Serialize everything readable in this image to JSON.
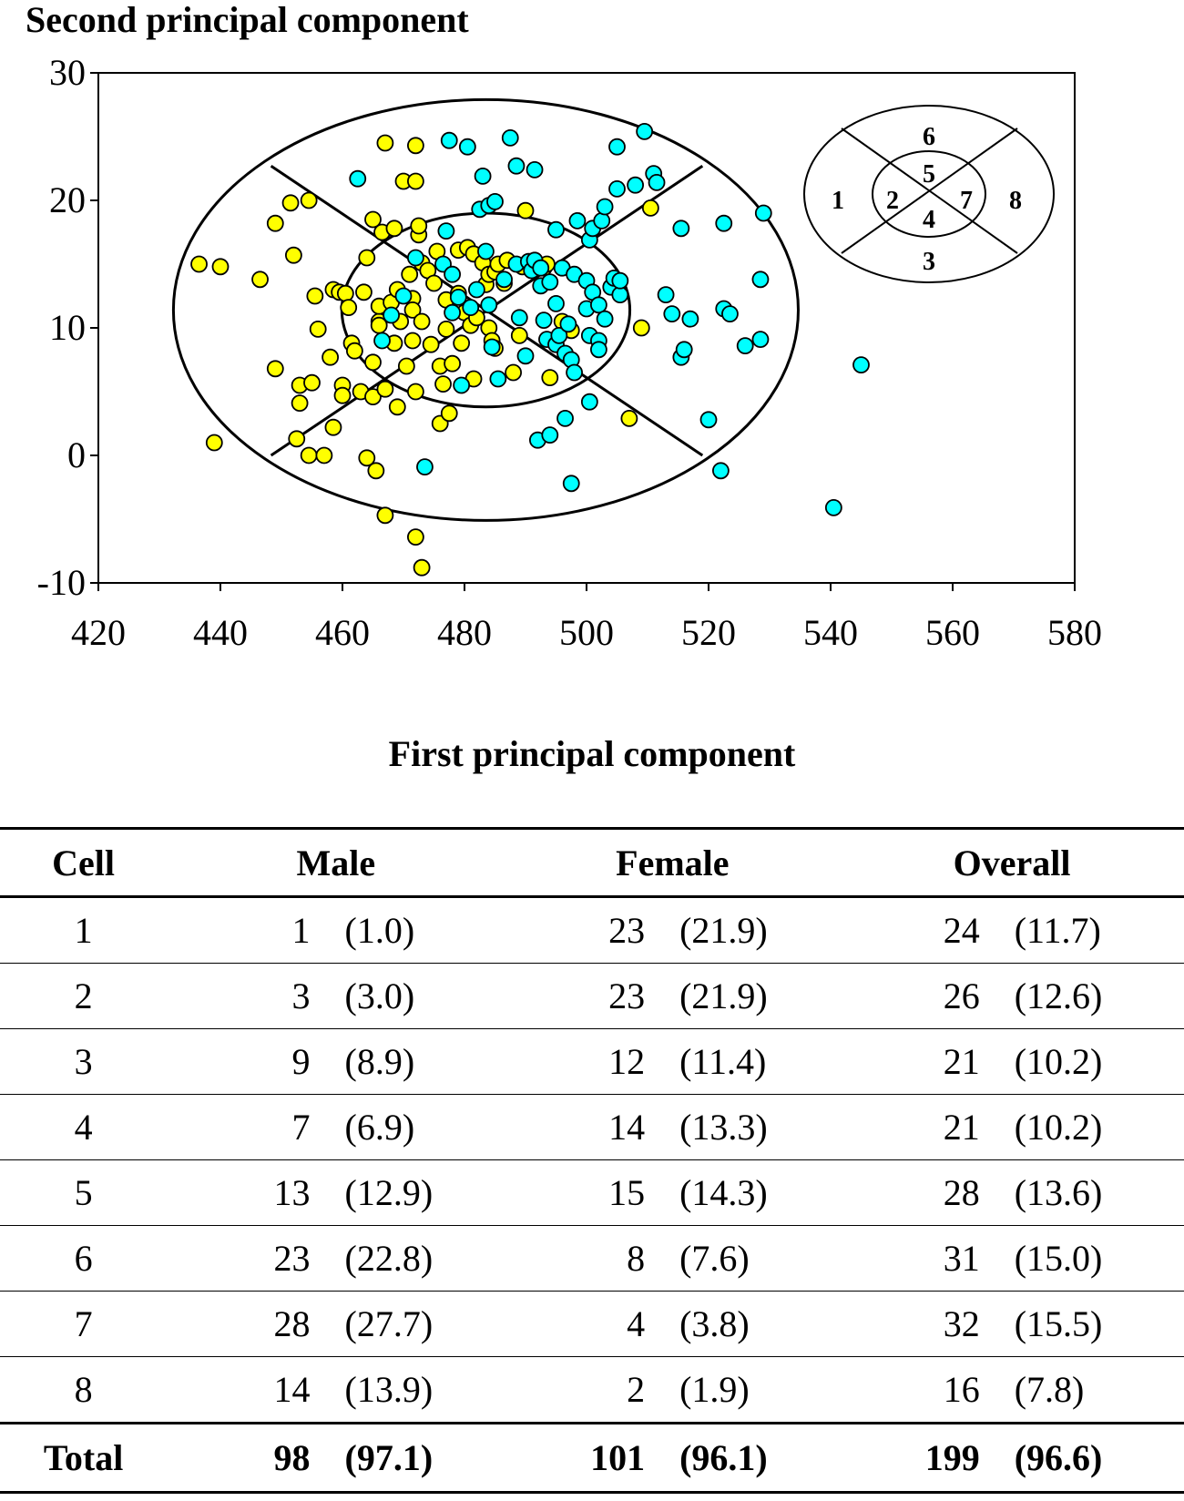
{
  "chart_data": {
    "type": "scatter",
    "ylabel": "Second principal component",
    "xlabel": "First principal component",
    "xlim": [
      420,
      580
    ],
    "ylim": [
      -10,
      30
    ],
    "xticks": [
      420,
      440,
      460,
      480,
      500,
      520,
      540,
      560,
      580
    ],
    "yticks": [
      -10,
      0,
      10,
      20,
      30
    ],
    "colors": {
      "female": "#ffff00",
      "male": "#00ffff",
      "outline": "#000000"
    },
    "ellipses": {
      "center": [
        483.5,
        11.4
      ],
      "inner_semi_axes": [
        23.6,
        7.6
      ],
      "outer_semi_axes": [
        51.2,
        16.5
      ],
      "divider_endpoints": [
        [
          448.3,
          22.7
        ],
        [
          519.0,
          0.0
        ],
        [
          448.3,
          0.0
        ],
        [
          519.0,
          22.7
        ]
      ]
    },
    "inset_legend": {
      "labels": [
        {
          "text": "1"
        },
        {
          "text": "2"
        },
        {
          "text": "3"
        },
        {
          "text": "4"
        },
        {
          "text": "5"
        },
        {
          "text": "6"
        },
        {
          "text": "7"
        },
        {
          "text": "8"
        }
      ]
    },
    "series": [
      {
        "color": "#ffff00",
        "points": [
          [
            436.5,
            15.0
          ],
          [
            439.0,
            1.0
          ],
          [
            440.0,
            14.8
          ],
          [
            446.5,
            13.8
          ],
          [
            449.0,
            6.8
          ],
          [
            449.0,
            18.2
          ],
          [
            451.5,
            19.8
          ],
          [
            452.0,
            15.7
          ],
          [
            452.5,
            1.3
          ],
          [
            453.0,
            5.5
          ],
          [
            453.0,
            4.1
          ],
          [
            454.5,
            20.0
          ],
          [
            454.5,
            0.0
          ],
          [
            455.0,
            5.7
          ],
          [
            455.5,
            12.5
          ],
          [
            456.0,
            9.9
          ],
          [
            457.0,
            0.0
          ],
          [
            458.0,
            7.7
          ],
          [
            458.5,
            13.0
          ],
          [
            458.5,
            2.2
          ],
          [
            459.5,
            12.8
          ],
          [
            460.0,
            5.5
          ],
          [
            460.0,
            4.7
          ],
          [
            460.5,
            12.7
          ],
          [
            461.0,
            11.6
          ],
          [
            461.5,
            8.8
          ],
          [
            462.0,
            8.2
          ],
          [
            463.0,
            5.0
          ],
          [
            463.5,
            12.8
          ],
          [
            464.0,
            15.5
          ],
          [
            464.0,
            -0.2
          ],
          [
            465.0,
            18.5
          ],
          [
            465.0,
            7.3
          ],
          [
            465.0,
            4.6
          ],
          [
            465.5,
            -1.2
          ],
          [
            466.0,
            10.5
          ],
          [
            466.0,
            10.2
          ],
          [
            466.0,
            11.7
          ],
          [
            466.5,
            17.5
          ],
          [
            467.0,
            24.5
          ],
          [
            467.0,
            5.2
          ],
          [
            467.0,
            -4.7
          ],
          [
            468.0,
            12.0
          ],
          [
            468.5,
            8.8
          ],
          [
            468.5,
            17.8
          ],
          [
            469.0,
            13.0
          ],
          [
            469.0,
            3.8
          ],
          [
            469.5,
            10.5
          ],
          [
            470.0,
            21.5
          ],
          [
            470.5,
            7.0
          ],
          [
            471.0,
            14.2
          ],
          [
            471.5,
            9.0
          ],
          [
            471.5,
            12.3
          ],
          [
            471.5,
            11.4
          ],
          [
            472.0,
            21.5
          ],
          [
            472.0,
            24.3
          ],
          [
            472.0,
            5.0
          ],
          [
            472.0,
            -6.4
          ],
          [
            472.5,
            17.3
          ],
          [
            472.5,
            18.0
          ],
          [
            473.0,
            15.1
          ],
          [
            473.0,
            10.5
          ],
          [
            473.0,
            -8.8
          ],
          [
            474.0,
            14.5
          ],
          [
            474.5,
            8.7
          ],
          [
            475.0,
            13.5
          ],
          [
            475.5,
            16.0
          ],
          [
            476.0,
            7.0
          ],
          [
            476.0,
            2.5
          ],
          [
            476.5,
            5.6
          ],
          [
            477.0,
            12.2
          ],
          [
            477.0,
            9.9
          ],
          [
            477.5,
            3.3
          ],
          [
            478.0,
            7.2
          ],
          [
            479.0,
            16.1
          ],
          [
            479.0,
            12.7
          ],
          [
            479.5,
            8.8
          ],
          [
            480.0,
            11.2
          ],
          [
            480.5,
            16.3
          ],
          [
            481.0,
            10.2
          ],
          [
            481.5,
            6.0
          ],
          [
            481.5,
            15.8
          ],
          [
            482.0,
            10.8
          ],
          [
            483.0,
            15.1
          ],
          [
            483.5,
            13.4
          ],
          [
            484.0,
            10.0
          ],
          [
            484.0,
            14.2
          ],
          [
            484.5,
            9.0
          ],
          [
            485.0,
            14.4
          ],
          [
            485.0,
            8.4
          ],
          [
            485.5,
            15.0
          ],
          [
            486.5,
            13.5
          ],
          [
            487.0,
            15.3
          ],
          [
            488.0,
            6.5
          ],
          [
            489.0,
            9.4
          ],
          [
            489.5,
            14.8
          ],
          [
            490.0,
            19.2
          ],
          [
            493.0,
            14.7
          ],
          [
            493.5,
            15.0
          ],
          [
            494.0,
            6.1
          ],
          [
            496.0,
            10.5
          ],
          [
            497.5,
            9.8
          ],
          [
            507.0,
            2.9
          ],
          [
            509.0,
            10.0
          ],
          [
            510.5,
            19.4
          ]
        ]
      },
      {
        "color": "#00ffff",
        "points": [
          [
            462.5,
            21.7
          ],
          [
            466.5,
            9.0
          ],
          [
            468.0,
            11.0
          ],
          [
            470.0,
            12.5
          ],
          [
            472.0,
            15.5
          ],
          [
            473.5,
            -0.9
          ],
          [
            476.5,
            15.0
          ],
          [
            477.0,
            17.6
          ],
          [
            477.5,
            24.7
          ],
          [
            478.0,
            14.2
          ],
          [
            478.0,
            11.2
          ],
          [
            479.0,
            12.4
          ],
          [
            479.5,
            5.5
          ],
          [
            480.5,
            24.2
          ],
          [
            481.0,
            11.6
          ],
          [
            482.0,
            13.0
          ],
          [
            482.5,
            19.3
          ],
          [
            483.0,
            21.9
          ],
          [
            483.5,
            16.0
          ],
          [
            484.0,
            11.8
          ],
          [
            484.0,
            19.6
          ],
          [
            484.5,
            8.5
          ],
          [
            485.0,
            19.9
          ],
          [
            485.5,
            6.0
          ],
          [
            486.5,
            13.8
          ],
          [
            487.5,
            24.9
          ],
          [
            488.5,
            22.7
          ],
          [
            488.5,
            15.0
          ],
          [
            489.0,
            10.8
          ],
          [
            490.0,
            7.8
          ],
          [
            490.5,
            15.2
          ],
          [
            491.0,
            14.5
          ],
          [
            491.5,
            22.4
          ],
          [
            491.5,
            15.3
          ],
          [
            492.0,
            1.2
          ],
          [
            492.5,
            14.7
          ],
          [
            492.5,
            13.3
          ],
          [
            493.0,
            10.6
          ],
          [
            493.5,
            9.1
          ],
          [
            494.0,
            13.6
          ],
          [
            494.0,
            1.6
          ],
          [
            495.0,
            17.7
          ],
          [
            495.0,
            11.9
          ],
          [
            495.0,
            8.7
          ],
          [
            495.5,
            9.4
          ],
          [
            496.0,
            14.7
          ],
          [
            496.5,
            2.9
          ],
          [
            496.5,
            8.0
          ],
          [
            497.0,
            10.3
          ],
          [
            497.5,
            -2.2
          ],
          [
            497.5,
            7.5
          ],
          [
            498.0,
            14.2
          ],
          [
            498.0,
            6.5
          ],
          [
            498.5,
            18.4
          ],
          [
            500.0,
            13.7
          ],
          [
            500.0,
            11.5
          ],
          [
            500.5,
            9.4
          ],
          [
            500.5,
            16.9
          ],
          [
            500.5,
            4.2
          ],
          [
            501.0,
            12.8
          ],
          [
            501.0,
            17.8
          ],
          [
            502.0,
            11.8
          ],
          [
            502.0,
            9.0
          ],
          [
            502.0,
            8.3
          ],
          [
            502.5,
            18.4
          ],
          [
            503.0,
            10.7
          ],
          [
            503.0,
            19.5
          ],
          [
            504.0,
            13.2
          ],
          [
            504.5,
            13.9
          ],
          [
            505.0,
            24.2
          ],
          [
            505.0,
            20.9
          ],
          [
            505.5,
            12.6
          ],
          [
            505.5,
            13.7
          ],
          [
            508.0,
            21.2
          ],
          [
            509.5,
            25.4
          ],
          [
            511.0,
            22.1
          ],
          [
            511.5,
            21.4
          ],
          [
            513.0,
            12.6
          ],
          [
            514.0,
            11.1
          ],
          [
            515.5,
            17.8
          ],
          [
            515.5,
            7.7
          ],
          [
            516.0,
            8.3
          ],
          [
            517.0,
            10.7
          ],
          [
            520.0,
            2.8
          ],
          [
            522.0,
            -1.2
          ],
          [
            522.5,
            18.2
          ],
          [
            522.5,
            11.5
          ],
          [
            523.5,
            11.1
          ],
          [
            526.0,
            8.6
          ],
          [
            528.5,
            13.8
          ],
          [
            528.5,
            9.1
          ],
          [
            529.0,
            19.0
          ],
          [
            540.5,
            -4.1
          ],
          [
            545.0,
            7.1
          ]
        ]
      }
    ]
  },
  "table": {
    "headers": {
      "cell": "Cell",
      "male": "Male",
      "female": "Female",
      "overall": "Overall"
    },
    "rows": [
      {
        "cell": "1",
        "male_n": "1",
        "male_p": "(1.0)",
        "female_n": "23",
        "female_p": "(21.9)",
        "overall_n": "24",
        "overall_p": "(11.7)"
      },
      {
        "cell": "2",
        "male_n": "3",
        "male_p": "(3.0)",
        "female_n": "23",
        "female_p": "(21.9)",
        "overall_n": "26",
        "overall_p": "(12.6)"
      },
      {
        "cell": "3",
        "male_n": "9",
        "male_p": "(8.9)",
        "female_n": "12",
        "female_p": "(11.4)",
        "overall_n": "21",
        "overall_p": "(10.2)"
      },
      {
        "cell": "4",
        "male_n": "7",
        "male_p": "(6.9)",
        "female_n": "14",
        "female_p": "(13.3)",
        "overall_n": "21",
        "overall_p": "(10.2)"
      },
      {
        "cell": "5",
        "male_n": "13",
        "male_p": "(12.9)",
        "female_n": "15",
        "female_p": "(14.3)",
        "overall_n": "28",
        "overall_p": "(13.6)"
      },
      {
        "cell": "6",
        "male_n": "23",
        "male_p": "(22.8)",
        "female_n": "8",
        "female_p": "(7.6)",
        "overall_n": "31",
        "overall_p": "(15.0)"
      },
      {
        "cell": "7",
        "male_n": "28",
        "male_p": "(27.7)",
        "female_n": "4",
        "female_p": "(3.8)",
        "overall_n": "32",
        "overall_p": "(15.5)"
      },
      {
        "cell": "8",
        "male_n": "14",
        "male_p": "(13.9)",
        "female_n": "2",
        "female_p": "(1.9)",
        "overall_n": "16",
        "overall_p": "(7.8)"
      }
    ],
    "total": {
      "cell": "Total",
      "male_n": "98",
      "male_p": "(97.1)",
      "female_n": "101",
      "female_p": "(96.1)",
      "overall_n": "199",
      "overall_p": "(96.6)"
    }
  }
}
